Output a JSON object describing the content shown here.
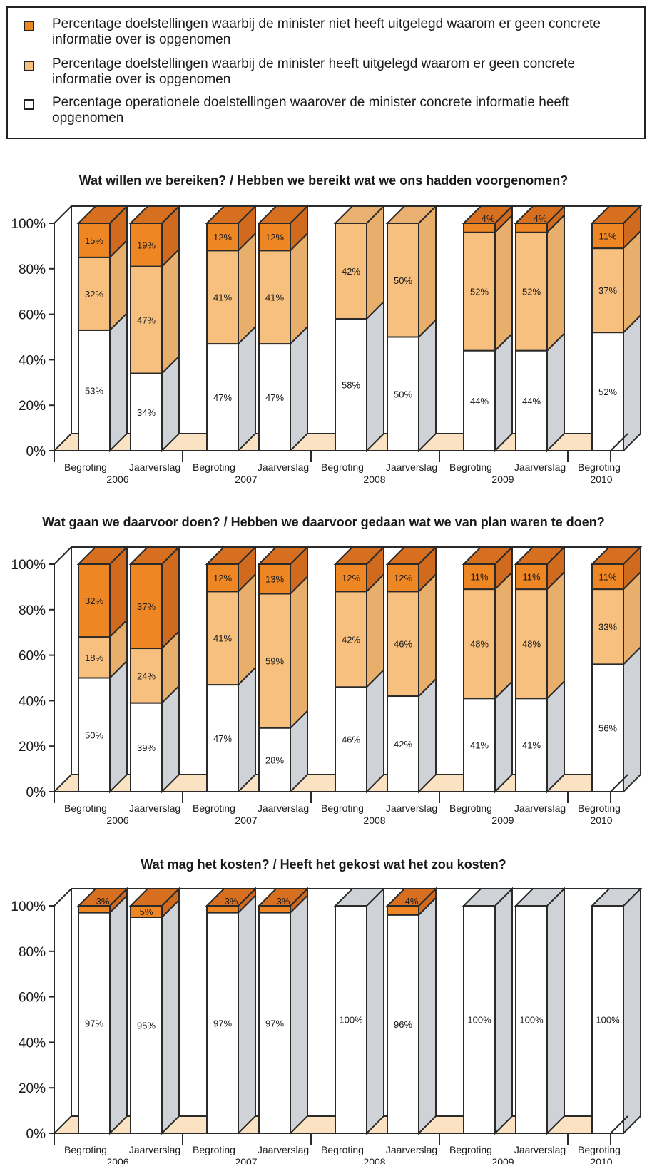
{
  "legend": {
    "items": [
      {
        "label": "Percentage doelstellingen waarbij de minister niet heeft uitgelegd waarom er geen concrete informatie over is opgenomen",
        "color": "#ef8624"
      },
      {
        "label": "Percentage doelstellingen waarbij de minister heeft uitgelegd waarom er geen concrete informatie over is opgenomen",
        "color": "#f7c07e"
      },
      {
        "label": "Percentage operationele doelstellingen waarover de minister concrete informatie heeft opgenomen",
        "color": "#ffffff"
      }
    ]
  },
  "chart_data": [
    {
      "type": "bar",
      "title": "Wat willen we bereiken? / Hebben we bereikt wat we ons hadden voorgenomen?",
      "stacked": true,
      "ylim": [
        0,
        100
      ],
      "y_ticks": [
        "0%",
        "20%",
        "40%",
        "60%",
        "80%",
        "100%"
      ],
      "categories": [
        "Begroting 2006",
        "Jaarverslag 2006",
        "Begroting 2007",
        "Jaarverslag 2007",
        "Begroting 2008",
        "Jaarverslag 2008",
        "Begroting 2009",
        "Jaarverslag 2009",
        "Begroting 2010"
      ],
      "series": [
        {
          "name": "Percentage operationele doelstellingen waarover de minister concrete informatie heeft opgenomen",
          "values": [
            53,
            34,
            47,
            47,
            58,
            50,
            44,
            44,
            52
          ]
        },
        {
          "name": "Percentage doelstellingen waarbij de minister heeft uitgelegd waarom er geen concrete informatie over is opgenomen",
          "values": [
            32,
            47,
            41,
            41,
            42,
            50,
            52,
            52,
            37
          ]
        },
        {
          "name": "Percentage doelstellingen waarbij de minister niet heeft uitgelegd waarom er geen concrete informatie over is opgenomen",
          "values": [
            15,
            19,
            12,
            12,
            0,
            0,
            4,
            4,
            11
          ]
        }
      ]
    },
    {
      "type": "bar",
      "title": "Wat gaan we daarvoor doen? / Hebben we daarvoor gedaan wat we van plan waren te doen?",
      "stacked": true,
      "ylim": [
        0,
        100
      ],
      "y_ticks": [
        "0%",
        "20%",
        "40%",
        "60%",
        "80%",
        "100%"
      ],
      "categories": [
        "Begroting 2006",
        "Jaarverslag 2006",
        "Begroting 2007",
        "Jaarverslag 2007",
        "Begroting 2008",
        "Jaarverslag 2008",
        "Begroting 2009",
        "Jaarverslag 2009",
        "Begroting 2010"
      ],
      "series": [
        {
          "name": "Percentage operationele doelstellingen waarover de minister concrete informatie heeft opgenomen",
          "values": [
            50,
            39,
            47,
            28,
            46,
            42,
            41,
            41,
            56
          ]
        },
        {
          "name": "Percentage doelstellingen waarbij de minister heeft uitgelegd waarom er geen concrete informatie over is opgenomen",
          "values": [
            18,
            24,
            41,
            59,
            42,
            46,
            48,
            48,
            33
          ]
        },
        {
          "name": "Percentage doelstellingen waarbij de minister niet heeft uitgelegd waarom er geen concrete informatie over is opgenomen",
          "values": [
            32,
            37,
            12,
            13,
            12,
            12,
            11,
            11,
            11
          ]
        }
      ]
    },
    {
      "type": "bar",
      "title": "Wat mag het kosten? / Heeft het gekost wat het zou kosten?",
      "stacked": true,
      "ylim": [
        0,
        100
      ],
      "y_ticks": [
        "0%",
        "20%",
        "40%",
        "60%",
        "80%",
        "100%"
      ],
      "categories": [
        "Begroting 2006",
        "Jaarverslag 2006",
        "Begroting 2007",
        "Jaarverslag 2007",
        "Begroting 2008",
        "Jaarverslag 2008",
        "Begroting 2009",
        "Jaarverslag 2009",
        "Begroting 2010"
      ],
      "series": [
        {
          "name": "Percentage operationele doelstellingen waarover de minister concrete informatie heeft opgenomen",
          "values": [
            97,
            95,
            97,
            97,
            100,
            96,
            100,
            100,
            100
          ]
        },
        {
          "name": "Percentage doelstellingen waarbij de minister heeft uitgelegd waarom er geen concrete informatie over is opgenomen",
          "values": [
            0,
            0,
            0,
            0,
            0,
            0,
            0,
            0,
            0
          ]
        },
        {
          "name": "Percentage doelstellingen waarbij de minister niet heeft uitgelegd waarom er geen concrete informatie over is opgenomen",
          "values": [
            3,
            5,
            3,
            3,
            0,
            4,
            0,
            0,
            0
          ]
        }
      ]
    }
  ],
  "x_axis": {
    "bar_labels": [
      "Begroting",
      "Jaarverslag",
      "Begroting",
      "Jaarverslag",
      "Begroting",
      "Jaarverslag",
      "Begroting",
      "Jaarverslag",
      "Begroting"
    ],
    "years": [
      "2006",
      "2007",
      "2008",
      "2009",
      "2010"
    ]
  },
  "colors": {
    "dark_orange": "#ef8624",
    "light_orange": "#f7c07e",
    "white": "#ffffff",
    "side_gray": "#cfd3d8",
    "floor": "#fbe2c3",
    "outline": "#2a2a2a"
  }
}
